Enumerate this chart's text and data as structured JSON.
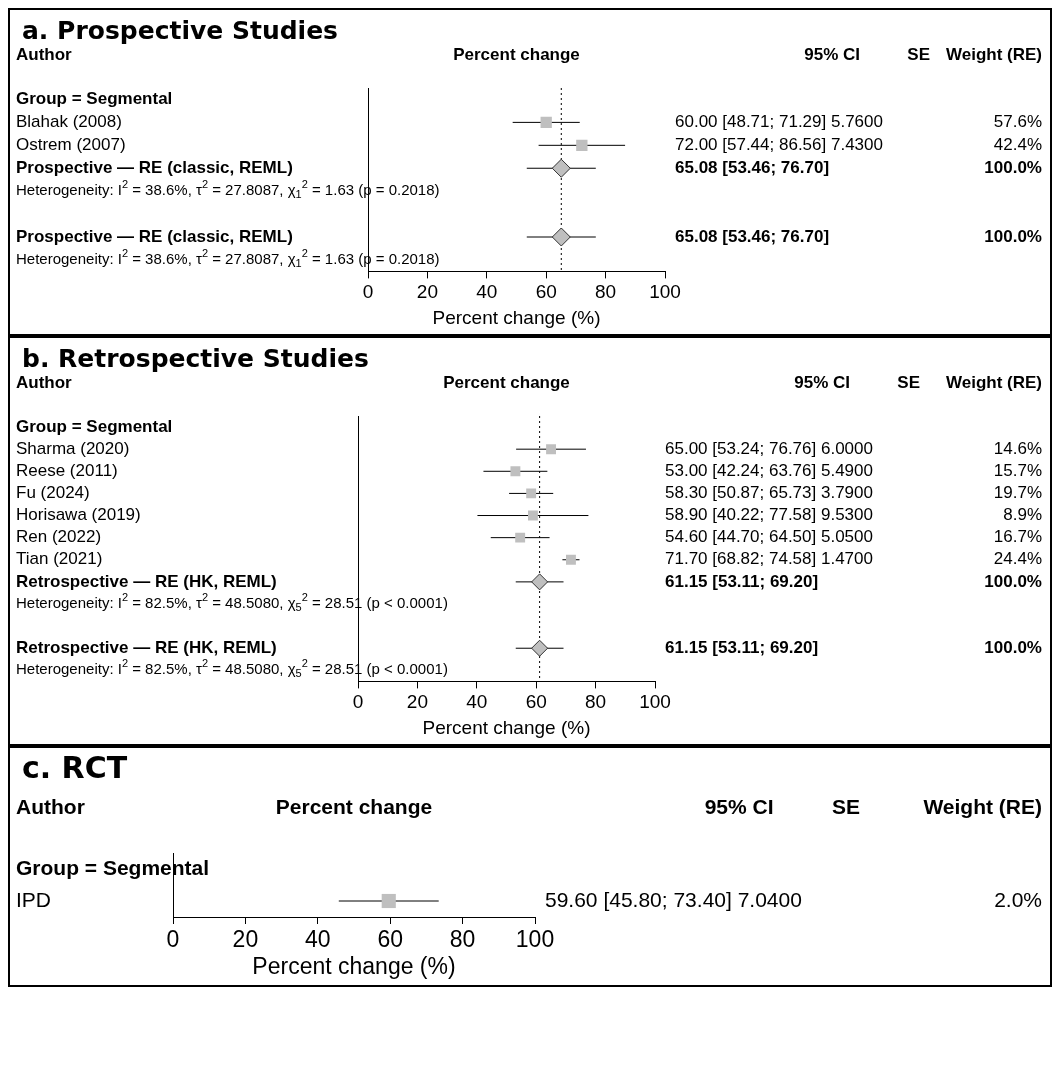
{
  "chart_data": [
    {
      "type": "scatter",
      "title": "a. Prospective Studies",
      "xlabel": "Percent change (%)",
      "orientation": "horizontal",
      "categories": [
        "Group = Segmental",
        "Blahak (2008)",
        "Ostrem (2007)",
        "Prospective — RE (classic, REML)",
        null,
        null,
        "Prospective — RE (classic, REML)",
        null
      ],
      "series": [
        {
          "type": "scatter",
          "marker": "square",
          "color": "#bfbfbf",
          "values": [
            null,
            60,
            72,
            null,
            null,
            null,
            null,
            null
          ],
          "errors": [
            null,
            [
              48.71,
              71.29
            ],
            [
              57.44,
              86.56
            ],
            null,
            null,
            null,
            null,
            null
          ],
          "value_labels": [
            null,
            "60.00 [48.71; 71.29] 5.7600 57.6%",
            "72.00 [57.44; 86.56] 7.4300 42.4%",
            null,
            null,
            null,
            null,
            null
          ]
        },
        {
          "type": "scatter",
          "marker": "diamond",
          "color": "#bfbfbf",
          "values": [
            null,
            null,
            null,
            65.08,
            null,
            null,
            65.08,
            null
          ],
          "errors": [
            null,
            null,
            null,
            [
              53.46,
              76.7
            ],
            null,
            null,
            [
              53.46,
              76.7
            ],
            null
          ],
          "value_labels": [
            null,
            null,
            null,
            "65.08 [53.46; 76.70] 100.0%",
            null,
            null,
            "65.08 [53.46; 76.70] 100.0%",
            null
          ]
        }
      ],
      "xlim": [
        0,
        100
      ],
      "xticks": [
        0,
        20,
        40,
        60,
        80,
        100
      ],
      "ref_lines": [
        {
          "axis": "x",
          "value": 65.08,
          "line_style": "dotted",
          "color": "#000000"
        }
      ],
      "annotations": [
        "Author",
        "Percent change",
        "95% CI",
        "SE",
        "Weight (RE)",
        "Heterogeneity: I$^{2}$ = 38.6%, τ$^{2}$ = 27.8087, χ$_{1}$$^{2}$ = 1.63 (p = 0.2018)",
        "Heterogeneity: I$^{2}$ = 38.6%, τ$^{2}$ = 27.8087, χ$_{1}$$^{2}$ = 1.63 (p = 0.2018)"
      ]
    },
    {
      "type": "scatter",
      "title": "b. Retrospective Studies",
      "xlabel": "Percent change (%)",
      "orientation": "horizontal",
      "categories": [
        "Group = Segmental",
        "Sharma (2020)",
        "Reese (2011)",
        "Fu (2024)",
        "Horisawa (2019)",
        "Ren (2022)",
        "Tian (2021)",
        "Retrospective — RE (HK, REML)",
        null,
        null,
        "Retrospective — RE (HK, REML)",
        null
      ],
      "series": [
        {
          "type": "scatter",
          "marker": "square",
          "color": "#bfbfbf",
          "values": [
            null,
            65.0,
            53.0,
            58.3,
            58.9,
            54.6,
            71.7,
            null,
            null,
            null,
            null,
            null
          ],
          "errors": [
            null,
            [
              53.24,
              76.76
            ],
            [
              42.24,
              63.76
            ],
            [
              50.87,
              65.73
            ],
            [
              40.22,
              77.58
            ],
            [
              44.7,
              64.5
            ],
            [
              68.82,
              74.58
            ],
            null,
            null,
            null,
            null,
            null
          ],
          "value_labels": [
            null,
            "65.00 [53.24; 76.76] 6.0000 14.6%",
            "53.00 [42.24; 63.76] 5.4900 15.7%",
            "58.30 [50.87; 65.73] 3.7900 19.7%",
            "58.90 [40.22; 77.58] 9.5300 8.9%",
            "54.60 [44.70; 64.50] 5.0500 16.7%",
            "71.70 [68.82; 74.58] 1.4700 24.4%",
            null,
            null,
            null,
            null,
            null
          ]
        },
        {
          "type": "scatter",
          "marker": "diamond",
          "color": "#bfbfbf",
          "values": [
            null,
            null,
            null,
            null,
            null,
            null,
            null,
            61.15,
            null,
            null,
            61.15,
            null
          ],
          "errors": [
            null,
            null,
            null,
            null,
            null,
            null,
            null,
            [
              53.11,
              69.2
            ],
            null,
            null,
            [
              53.11,
              69.2
            ],
            null
          ],
          "value_labels": [
            null,
            null,
            null,
            null,
            null,
            null,
            null,
            "61.15 [53.11; 69.20] 100.0%",
            null,
            null,
            "61.15 [53.11; 69.20] 100.0%",
            null
          ]
        }
      ],
      "xlim": [
        0,
        100
      ],
      "xticks": [
        0,
        20,
        40,
        60,
        80,
        100
      ],
      "ref_lines": [
        {
          "axis": "x",
          "value": 61.15,
          "line_style": "dotted",
          "color": "#000000"
        }
      ],
      "annotations": [
        "Author",
        "Percent change",
        "95% CI",
        "SE",
        "Weight (RE)",
        "Heterogeneity: I$^{2}$ = 82.5%, τ$^{2}$ = 48.5080, χ$_{5}$$^{2}$ = 28.51 (p < 0.0001)",
        "Heterogeneity: I$^{2}$ = 82.5%, τ$^{2}$ = 48.5080, χ$_{5}$$^{2}$ = 28.51 (p < 0.0001)"
      ]
    },
    {
      "type": "scatter",
      "title": "c. RCT",
      "xlabel": "Percent change (%)",
      "orientation": "horizontal",
      "categories": [
        "Group = Segmental",
        "IPD"
      ],
      "series": [
        {
          "type": "scatter",
          "marker": "square",
          "color": "#bfbfbf",
          "values": [
            null,
            59.6
          ],
          "errors": [
            null,
            [
              45.8,
              73.4
            ]
          ],
          "value_labels": [
            null,
            "59.60 [45.80; 73.40] 7.0400 2.0%"
          ]
        }
      ],
      "xlim": [
        0,
        100
      ],
      "xticks": [
        0,
        20,
        40,
        60,
        80,
        100
      ],
      "annotations": [
        "Author",
        "Percent change",
        "95% CI",
        "SE",
        "Weight (RE)"
      ]
    }
  ]
}
